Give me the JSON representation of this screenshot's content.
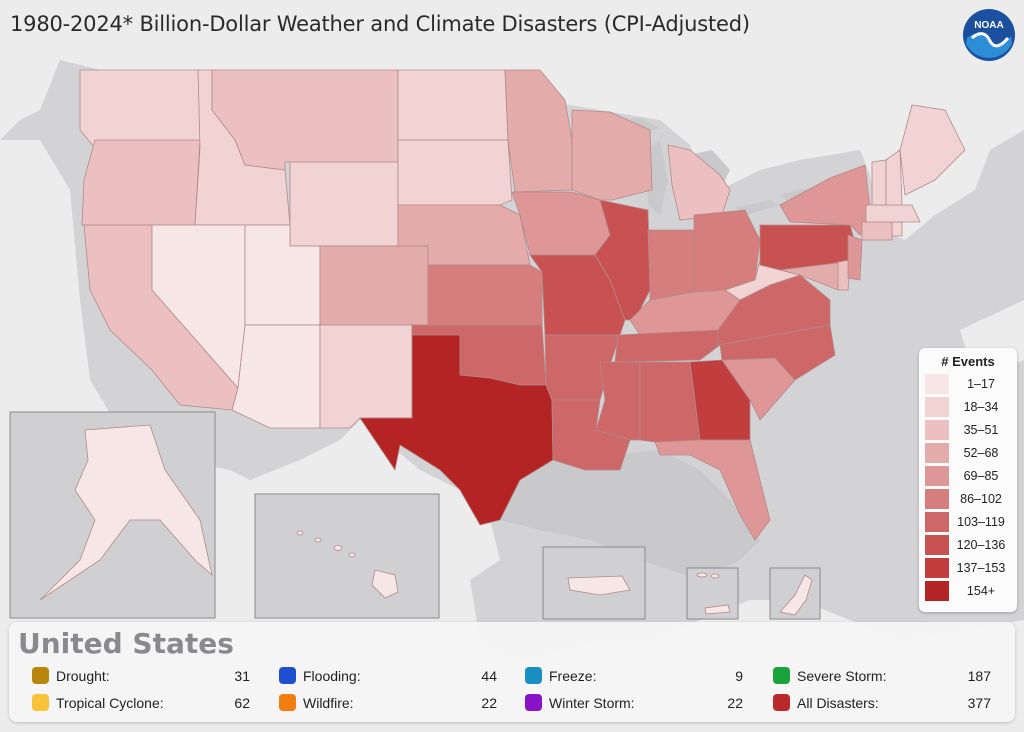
{
  "title": "1980-2024* Billion-Dollar Weather and Climate Disasters (CPI-Adjusted)",
  "logo": {
    "text": "NOAA",
    "icon": "noaa-logo-icon",
    "colors": [
      "#1b4fa0",
      "#2d8ed8",
      "#ffffff"
    ]
  },
  "legend": {
    "title": "# Events",
    "bins": [
      {
        "label": "1–17",
        "color": "#f6e6e6"
      },
      {
        "label": "18–34",
        "color": "#f1d3d3"
      },
      {
        "label": "35–51",
        "color": "#ecc0c0"
      },
      {
        "label": "52–68",
        "color": "#e4abab"
      },
      {
        "label": "69–85",
        "color": "#de9696"
      },
      {
        "label": "86–102",
        "color": "#d67d7d"
      },
      {
        "label": "103–119",
        "color": "#ce6767"
      },
      {
        "label": "120–136",
        "color": "#c85252"
      },
      {
        "label": "137–153",
        "color": "#c23e3e"
      },
      {
        "label": "154+",
        "color": "#b52424"
      }
    ]
  },
  "map": {
    "region": "United States",
    "insets": [
      "Alaska",
      "Hawaii",
      "Puerto Rico",
      "U.S. Virgin Islands",
      "Guam"
    ],
    "state_bins": {
      "TX": 9,
      "GA": 8,
      "MO": 7,
      "IL": 7,
      "PA": 7,
      "VA": 6,
      "NC": 6,
      "OK": 6,
      "TN": 6,
      "AR": 6,
      "MS": 6,
      "AL": 6,
      "LA": 6,
      "IN": 5,
      "OH": 5,
      "KS": 5,
      "IA": 4,
      "NY": 4,
      "SC": 4,
      "KY": 4,
      "FL": 4,
      "NE": 3,
      "CO": 3,
      "MN": 3,
      "WI": 3,
      "MD": 3,
      "NJ": 4,
      "MI": 2,
      "SD": 1,
      "ND": 1,
      "MT": 2,
      "WY": 1,
      "NM": 1,
      "OR": 2,
      "CA": 2,
      "WA": 1,
      "ID": 1,
      "NV": 0,
      "UT": 0,
      "AZ": 0,
      "WV": 1,
      "ME": 1,
      "NH": 1,
      "VT": 1,
      "MA": 1,
      "CT": 2,
      "RI": 1,
      "DE": 2,
      "AK": 0,
      "HI": 0,
      "PR": 0,
      "VI": 0,
      "GU": 0
    }
  },
  "summary": {
    "title": "United States",
    "items": [
      {
        "label": "Drought:",
        "count": "31",
        "color": "#b8860b"
      },
      {
        "label": "Flooding:",
        "count": "44",
        "color": "#1f4fd1"
      },
      {
        "label": "Freeze:",
        "count": "9",
        "color": "#1a8fc4"
      },
      {
        "label": "Severe Storm:",
        "count": "187",
        "color": "#19a33a"
      },
      {
        "label": "Tropical Cyclone:",
        "count": "62",
        "color": "#f8c23a"
      },
      {
        "label": "Wildfire:",
        "count": "22",
        "color": "#f27d10"
      },
      {
        "label": "Winter Storm:",
        "count": "22",
        "color": "#8a12c9"
      },
      {
        "label": "All Disasters:",
        "count": "377",
        "color": "#b9292b"
      }
    ]
  }
}
